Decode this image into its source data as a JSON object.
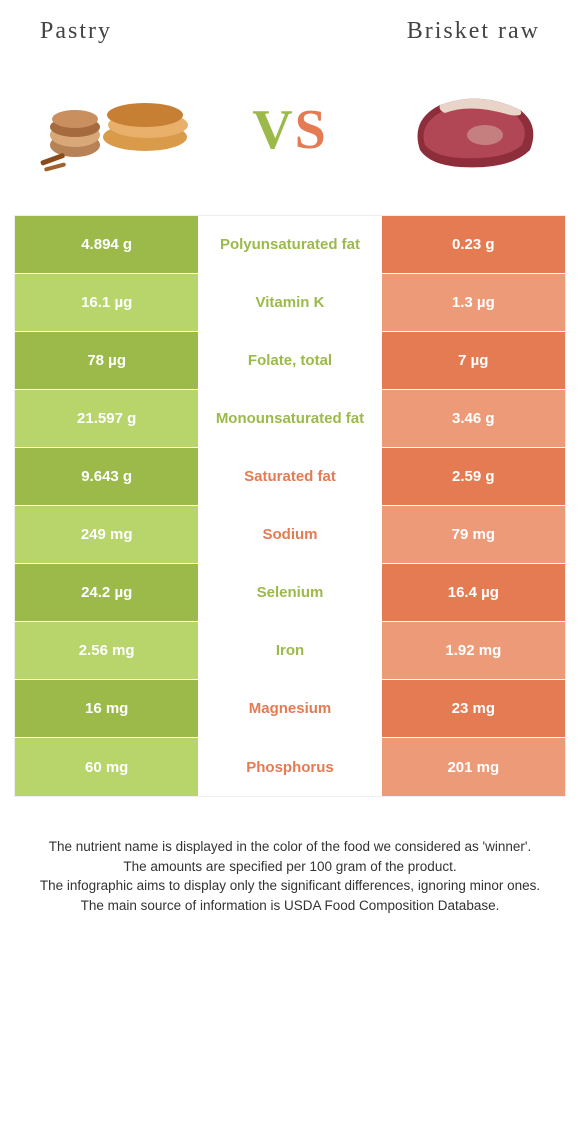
{
  "colors": {
    "green": "#9bba4a",
    "green_light": "#b7d56b",
    "orange": "#e47b53",
    "orange_light": "#ed9a78",
    "white": "#ffffff",
    "text_dark": "#444444"
  },
  "left": {
    "title": "Pastry"
  },
  "right": {
    "title": "Brisket raw"
  },
  "vs": {
    "v": "V",
    "s": "S"
  },
  "rows": [
    {
      "left": "4.894 g",
      "label": "Polyunsaturated fat",
      "right": "0.23 g",
      "winner": "left"
    },
    {
      "left": "16.1 µg",
      "label": "Vitamin K",
      "right": "1.3 µg",
      "winner": "left"
    },
    {
      "left": "78 µg",
      "label": "Folate, total",
      "right": "7 µg",
      "winner": "left"
    },
    {
      "left": "21.597 g",
      "label": "Monounsaturated fat",
      "right": "3.46 g",
      "winner": "left"
    },
    {
      "left": "9.643 g",
      "label": "Saturated fat",
      "right": "2.59 g",
      "winner": "right"
    },
    {
      "left": "249 mg",
      "label": "Sodium",
      "right": "79 mg",
      "winner": "right"
    },
    {
      "left": "24.2 µg",
      "label": "Selenium",
      "right": "16.4 µg",
      "winner": "left"
    },
    {
      "left": "2.56 mg",
      "label": "Iron",
      "right": "1.92 mg",
      "winner": "left"
    },
    {
      "left": "16 mg",
      "label": "Magnesium",
      "right": "23 mg",
      "winner": "right"
    },
    {
      "left": "60 mg",
      "label": "Phosphorus",
      "right": "201 mg",
      "winner": "right"
    }
  ],
  "footer": {
    "l1": "The nutrient name is displayed in the color of the food we considered as 'winner'.",
    "l2": "The amounts are specified per 100 gram of the product.",
    "l3": "The infographic aims to display only the significant differences, ignoring minor ones.",
    "l4": "The main source of information is USDA Food Composition Database."
  }
}
